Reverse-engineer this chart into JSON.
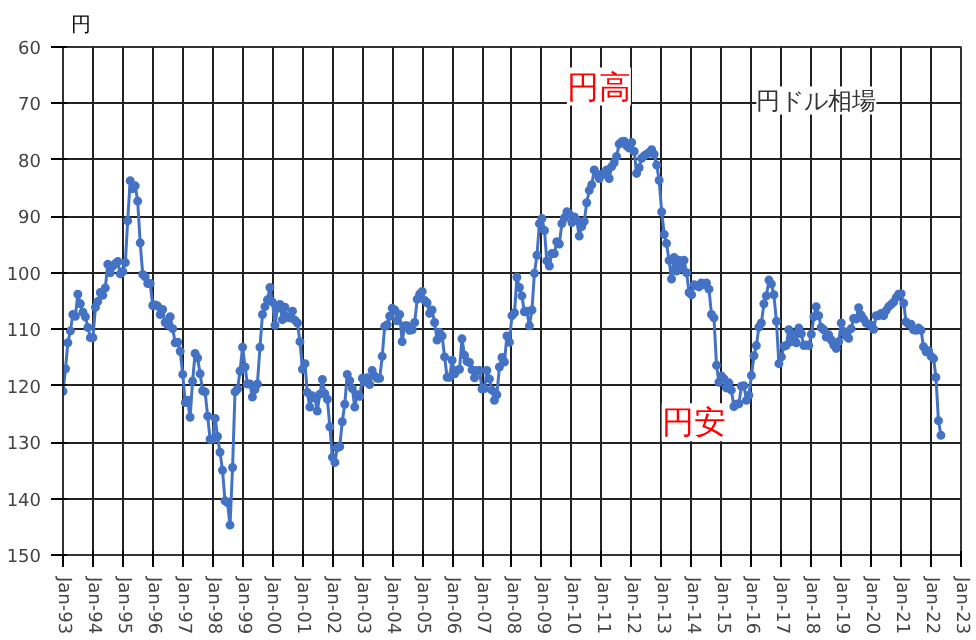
{
  "chart_data": {
    "type": "line",
    "title": "円ドル相場",
    "ylabel": "円",
    "annotations": [
      "円高",
      "円安"
    ],
    "xlim": [
      "1993-01",
      "2023-01"
    ],
    "xticks": [
      {
        "value": "1993-01",
        "label": "Jan-93"
      },
      {
        "value": "1994-01",
        "label": "Jan-94"
      },
      {
        "value": "1995-01",
        "label": "Jan-95"
      },
      {
        "value": "1996-01",
        "label": "Jan-96"
      },
      {
        "value": "1997-01",
        "label": "Jan-97"
      },
      {
        "value": "1998-01",
        "label": "Jan-98"
      },
      {
        "value": "1999-01",
        "label": "Jan-99"
      },
      {
        "value": "2000-01",
        "label": "Jan-00"
      },
      {
        "value": "2001-01",
        "label": "Jan-01"
      },
      {
        "value": "2002-01",
        "label": "Jan-02"
      },
      {
        "value": "2003-01",
        "label": "Jan-03"
      },
      {
        "value": "2004-01",
        "label": "Jan-04"
      },
      {
        "value": "2005-01",
        "label": "Jan-05"
      },
      {
        "value": "2006-01",
        "label": "Jan-06"
      },
      {
        "value": "2007-01",
        "label": "Jan-07"
      },
      {
        "value": "2008-01",
        "label": "Jan-08"
      },
      {
        "value": "2009-01",
        "label": "Jan-09"
      },
      {
        "value": "2010-01",
        "label": "Jan-10"
      },
      {
        "value": "2011-01",
        "label": "Jan-11"
      },
      {
        "value": "2012-01",
        "label": "Jan-12"
      },
      {
        "value": "2013-01",
        "label": "Jan-13"
      },
      {
        "value": "2014-01",
        "label": "Jan-14"
      },
      {
        "value": "2015-01",
        "label": "Jan-15"
      },
      {
        "value": "2016-01",
        "label": "Jan-16"
      },
      {
        "value": "2017-01",
        "label": "Jan-17"
      },
      {
        "value": "2018-01",
        "label": "Jan-18"
      },
      {
        "value": "2019-01",
        "label": "Jan-19"
      },
      {
        "value": "2020-01",
        "label": "Jan-20"
      },
      {
        "value": "2021-01",
        "label": "Jan-21"
      },
      {
        "value": "2022-01",
        "label": "Jan-22"
      },
      {
        "value": "2023-01",
        "label": "Jan-23"
      }
    ],
    "ylim": [
      150,
      60
    ],
    "yticks": [
      60,
      70,
      80,
      90,
      100,
      110,
      120,
      130,
      140,
      150
    ],
    "grid": true,
    "marker": "circle",
    "line_style": "solid",
    "x": [
      "1993-01",
      "1993-02",
      "1993-03",
      "1993-04",
      "1993-05",
      "1993-06",
      "1993-07",
      "1993-08",
      "1993-09",
      "1993-10",
      "1993-11",
      "1993-12",
      "1994-01",
      "1994-02",
      "1994-03",
      "1994-04",
      "1994-05",
      "1994-06",
      "1994-07",
      "1994-08",
      "1994-09",
      "1994-10",
      "1994-11",
      "1994-12",
      "1995-01",
      "1995-02",
      "1995-03",
      "1995-04",
      "1995-05",
      "1995-06",
      "1995-07",
      "1995-08",
      "1995-09",
      "1995-10",
      "1995-11",
      "1995-12",
      "1996-01",
      "1996-02",
      "1996-03",
      "1996-04",
      "1996-05",
      "1996-06",
      "1996-07",
      "1996-08",
      "1996-09",
      "1996-10",
      "1996-11",
      "1996-12",
      "1997-01",
      "1997-02",
      "1997-03",
      "1997-04",
      "1997-05",
      "1997-06",
      "1997-07",
      "1997-08",
      "1997-09",
      "1997-10",
      "1997-11",
      "1997-12",
      "1998-01",
      "1998-02",
      "1998-03",
      "1998-04",
      "1998-05",
      "1998-06",
      "1998-07",
      "1998-08",
      "1998-09",
      "1998-10",
      "1998-11",
      "1998-12",
      "1999-01",
      "1999-02",
      "1999-03",
      "1999-04",
      "1999-05",
      "1999-06",
      "1999-07",
      "1999-08",
      "1999-09",
      "1999-10",
      "1999-11",
      "1999-12",
      "2000-01",
      "2000-02",
      "2000-03",
      "2000-04",
      "2000-05",
      "2000-06",
      "2000-07",
      "2000-08",
      "2000-09",
      "2000-10",
      "2000-11",
      "2000-12",
      "2001-01",
      "2001-02",
      "2001-03",
      "2001-04",
      "2001-05",
      "2001-06",
      "2001-07",
      "2001-08",
      "2001-09",
      "2001-10",
      "2001-11",
      "2001-12",
      "2002-01",
      "2002-02",
      "2002-03",
      "2002-04",
      "2002-05",
      "2002-06",
      "2002-07",
      "2002-08",
      "2002-09",
      "2002-10",
      "2002-11",
      "2002-12",
      "2003-01",
      "2003-02",
      "2003-03",
      "2003-04",
      "2003-05",
      "2003-06",
      "2003-07",
      "2003-08",
      "2003-09",
      "2003-10",
      "2003-11",
      "2003-12",
      "2004-01",
      "2004-02",
      "2004-03",
      "2004-04",
      "2004-05",
      "2004-06",
      "2004-07",
      "2004-08",
      "2004-09",
      "2004-10",
      "2004-11",
      "2004-12",
      "2005-01",
      "2005-02",
      "2005-03",
      "2005-04",
      "2005-05",
      "2005-06",
      "2005-07",
      "2005-08",
      "2005-09",
      "2005-10",
      "2005-11",
      "2005-12",
      "2006-01",
      "2006-02",
      "2006-03",
      "2006-04",
      "2006-05",
      "2006-06",
      "2006-07",
      "2006-08",
      "2006-09",
      "2006-10",
      "2006-11",
      "2006-12",
      "2007-01",
      "2007-02",
      "2007-03",
      "2007-04",
      "2007-05",
      "2007-06",
      "2007-07",
      "2007-08",
      "2007-09",
      "2007-10",
      "2007-11",
      "2007-12",
      "2008-01",
      "2008-02",
      "2008-03",
      "2008-04",
      "2008-05",
      "2008-06",
      "2008-07",
      "2008-08",
      "2008-09",
      "2008-10",
      "2008-11",
      "2008-12",
      "2009-01",
      "2009-02",
      "2009-03",
      "2009-04",
      "2009-05",
      "2009-06",
      "2009-07",
      "2009-08",
      "2009-09",
      "2009-10",
      "2009-11",
      "2009-12",
      "2010-01",
      "2010-02",
      "2010-03",
      "2010-04",
      "2010-05",
      "2010-06",
      "2010-07",
      "2010-08",
      "2010-09",
      "2010-10",
      "2010-11",
      "2010-12",
      "2011-01",
      "2011-02",
      "2011-03",
      "2011-04",
      "2011-05",
      "2011-06",
      "2011-07",
      "2011-08",
      "2011-09",
      "2011-10",
      "2011-11",
      "2011-12",
      "2012-01",
      "2012-02",
      "2012-03",
      "2012-04",
      "2012-05",
      "2012-06",
      "2012-07",
      "2012-08",
      "2012-09",
      "2012-10",
      "2012-11",
      "2012-12",
      "2013-01",
      "2013-02",
      "2013-03",
      "2013-04",
      "2013-05",
      "2013-06",
      "2013-07",
      "2013-08",
      "2013-09",
      "2013-10",
      "2013-11",
      "2013-12",
      "2014-01",
      "2014-02",
      "2014-03",
      "2014-04",
      "2014-05",
      "2014-06",
      "2014-07",
      "2014-08",
      "2014-09",
      "2014-10",
      "2014-11",
      "2014-12",
      "2015-01",
      "2015-02",
      "2015-03",
      "2015-04",
      "2015-05",
      "2015-06",
      "2015-07",
      "2015-08",
      "2015-09",
      "2015-10",
      "2015-11",
      "2015-12",
      "2016-01",
      "2016-02",
      "2016-03",
      "2016-04",
      "2016-05",
      "2016-06",
      "2016-07",
      "2016-08",
      "2016-09",
      "2016-10",
      "2016-11",
      "2016-12",
      "2017-01",
      "2017-02",
      "2017-03",
      "2017-04",
      "2017-05",
      "2017-06",
      "2017-07",
      "2017-08",
      "2017-09",
      "2017-10",
      "2017-11",
      "2017-12",
      "2018-01",
      "2018-02",
      "2018-03",
      "2018-04",
      "2018-05",
      "2018-06",
      "2018-07",
      "2018-08",
      "2018-09",
      "2018-10",
      "2018-11",
      "2018-12",
      "2019-01",
      "2019-02",
      "2019-03",
      "2019-04",
      "2019-05",
      "2019-06",
      "2019-07",
      "2019-08",
      "2019-09",
      "2019-10",
      "2019-11",
      "2019-12",
      "2020-01",
      "2020-02",
      "2020-03",
      "2020-04",
      "2020-05",
      "2020-06",
      "2020-07",
      "2020-08",
      "2020-09",
      "2020-10",
      "2020-11",
      "2020-12",
      "2021-01",
      "2021-02",
      "2021-03",
      "2021-04",
      "2021-05",
      "2021-06",
      "2021-07",
      "2021-08",
      "2021-09",
      "2021-10",
      "2021-11",
      "2021-12",
      "2022-01",
      "2022-02",
      "2022-03",
      "2022-04",
      "2022-05"
    ],
    "series": [
      {
        "color": "#4472c4",
        "values": [
          121,
          117,
          112.4,
          110.3,
          107.4,
          107.7,
          103.8,
          105.5,
          107,
          107.8,
          109.7,
          111.5,
          111.5,
          106.1,
          105.1,
          103.5,
          104,
          102.7,
          98.5,
          100,
          98.8,
          98.4,
          98,
          100.2,
          99.8,
          98.2,
          90.8,
          83.7,
          85.1,
          84.6,
          87.3,
          94.7,
          100.3,
          100.7,
          101.9,
          101.9,
          105.8,
          105.7,
          105.9,
          107.4,
          106.5,
          108.8,
          109.2,
          107.8,
          109.9,
          112.4,
          112.3,
          113.9,
          118,
          123,
          122.6,
          125.6,
          119.2,
          114.3,
          115.1,
          117.9,
          120.9,
          121.1,
          125.4,
          129.5,
          129.5,
          125.8,
          129,
          131.8,
          135,
          140.4,
          140.7,
          144.7,
          134.5,
          121.1,
          120.6,
          117.4,
          113.2,
          116.7,
          119.7,
          119.7,
          122,
          120.7,
          119.7,
          113.2,
          107.4,
          106,
          104.8,
          102.6,
          105.2,
          109.3,
          106.3,
          105.6,
          108.3,
          106.1,
          107.9,
          108,
          106.8,
          108.4,
          108.9,
          112.2,
          117.1,
          116.1,
          121.2,
          123.8,
          121.8,
          122.2,
          124.5,
          121.5,
          118.9,
          121.4,
          122.4,
          127.3,
          132.7,
          133.6,
          131,
          130.8,
          126.4,
          123.3,
          118,
          119.1,
          120.5,
          123.8,
          121.6,
          121.9,
          118.7,
          119.3,
          118.6,
          119.8,
          117.3,
          118.3,
          118.7,
          118.7,
          114.8,
          109.5,
          109.2,
          107.7,
          106.3,
          106.6,
          108.5,
          107.4,
          112.2,
          109.4,
          109.4,
          110.2,
          110.1,
          108.8,
          104.7,
          103.8,
          103.3,
          104.9,
          105.3,
          107.2,
          106.6,
          108.8,
          111.9,
          110.6,
          111.2,
          114.9,
          118.5,
          118.5,
          115.5,
          117.9,
          117.3,
          117.1,
          111.7,
          114.6,
          115.7,
          115.9,
          117.2,
          118.6,
          117.3,
          117.3,
          120.6,
          120.5,
          117.3,
          118.8,
          120.8,
          122.6,
          121.6,
          116.7,
          115,
          115.8,
          111.2,
          112.3,
          107.6,
          107.1,
          100.8,
          102.6,
          104.1,
          106.9,
          106.8,
          109.4,
          106.6,
          100.1,
          96.9,
          91.3,
          90.4,
          92.5,
          97.9,
          98.8,
          96.6,
          96.6,
          94.5,
          94.9,
          91.3,
          90.3,
          89.2,
          89.6,
          91.1,
          90.1,
          90.7,
          93.5,
          91.8,
          90.9,
          87.6,
          85.4,
          84.4,
          81.8,
          82.5,
          83.3,
          82.6,
          82.6,
          81.8,
          83.3,
          81.2,
          80.5,
          79.4,
          77.2,
          76.8,
          76.7,
          77.5,
          77.9,
          76.9,
          78.5,
          82.4,
          81.4,
          79.7,
          79.3,
          79,
          78.7,
          78.2,
          79,
          80.9,
          83.6,
          89.2,
          93.2,
          94.8,
          97.8,
          101.1,
          97.3,
          99.7,
          97.8,
          99.2,
          97.8,
          100,
          103.5,
          103.9,
          102.1,
          102.3,
          102.5,
          101.8,
          102.1,
          101.8,
          102.9,
          107.4,
          108,
          116.4,
          119.4,
          118.3,
          118.8,
          120.4,
          119.5,
          120.8,
          123.7,
          123.3,
          123.2,
          120.1,
          120,
          122.6,
          121.7,
          118.2,
          114.7,
          112.9,
          109.6,
          108.9,
          105.5,
          104.1,
          101.3,
          102,
          103.9,
          108.6,
          116.1,
          114.9,
          113,
          112.9,
          110.1,
          112.2,
          110.9,
          112.4,
          109.8,
          110.8,
          112.9,
          112.8,
          112.9,
          110.9,
          107.8,
          106,
          107.6,
          109.7,
          110.1,
          111.4,
          111,
          111.9,
          112.8,
          113.4,
          112.2,
          108.9,
          110.4,
          111.2,
          111.6,
          109.9,
          108.1,
          108.2,
          106.2,
          107.5,
          108.2,
          108.9,
          109.1,
          109.3,
          110,
          107.6,
          107.6,
          107.2,
          107.6,
          106.7,
          106,
          105.6,
          105.2,
          104.4,
          103.8,
          103.7,
          105.4,
          108.7,
          109.1,
          109.1,
          110.1,
          110.2,
          109.8,
          110.2,
          113.1,
          114,
          113.8,
          114.8,
          115.2,
          118.5,
          126.2,
          128.8
        ]
      }
    ]
  }
}
